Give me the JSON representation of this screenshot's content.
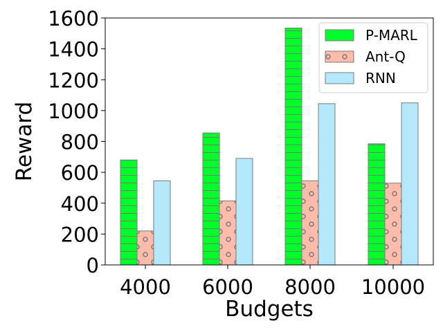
{
  "chart_data": {
    "type": "bar",
    "title": "",
    "xlabel": "Budgets",
    "ylabel": "Reward",
    "categories": [
      "4000",
      "6000",
      "8000",
      "10000"
    ],
    "ylim": [
      0,
      1600
    ],
    "yticks": [
      0,
      200,
      400,
      600,
      800,
      1000,
      1200,
      1400,
      1600
    ],
    "grid": false,
    "legend_position": "top-right",
    "series": [
      {
        "name": "P-MARL",
        "values": [
          680,
          855,
          1535,
          785
        ],
        "color": "#00ff2a",
        "pattern": "horizontal-lines"
      },
      {
        "name": "Ant-Q",
        "values": [
          220,
          415,
          545,
          530
        ],
        "color": "#ffbcaa",
        "pattern": "circles"
      },
      {
        "name": "RNN",
        "values": [
          545,
          690,
          1045,
          1050
        ],
        "color": "#b3e9fb",
        "pattern": "none"
      }
    ]
  }
}
